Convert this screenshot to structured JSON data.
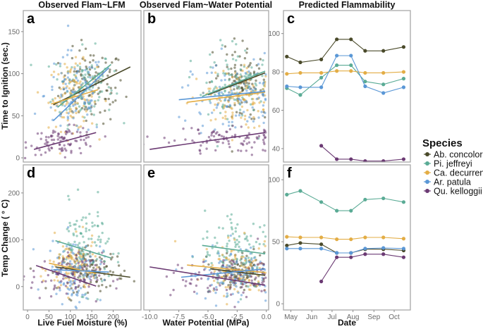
{
  "chart_data": {
    "type": "scatter",
    "species": [
      {
        "name": "Ab. concolor",
        "color": "#4a4a2a"
      },
      {
        "name": "Pi. jeffreyi",
        "color": "#5aab95"
      },
      {
        "name": "Ca. decurrens",
        "color": "#e3ad45"
      },
      {
        "name": "Ar. patula",
        "color": "#5a97d6"
      },
      {
        "name": "Qu. kelloggii",
        "color": "#6b3a73"
      }
    ],
    "legend": {
      "title": "Species",
      "placement": "right"
    },
    "column_titles": [
      "Observed Flam~LFM",
      "Observed Flam~Water Potential",
      "Predicted Flammability"
    ],
    "row_ylabels": [
      "Time to Ignition (sec.)",
      "Temp Change ( ° C)"
    ],
    "xlabels": [
      "Live Fuel Moisture (%)",
      "Water Potential (MPa)",
      "Date"
    ],
    "panels": [
      {
        "id": "a",
        "type": "scatter",
        "x": "Live Fuel Moisture (%)",
        "y": "Time to Ignition (sec.)",
        "xlim": [
          -10,
          265
        ],
        "ylim": [
          -5,
          175
        ],
        "xticks": [
          0,
          50,
          100,
          150,
          200
        ],
        "show_xticks": false,
        "yticks": [
          0,
          50,
          100,
          150
        ],
        "fits": [
          {
            "species": "Ab. concolor",
            "x": [
              60,
              240
            ],
            "y": [
              63,
              108
            ]
          },
          {
            "species": "Pi. jeffreyi",
            "x": [
              70,
              195
            ],
            "y": [
              60,
              111
            ]
          },
          {
            "species": "Ca. decurrens",
            "x": [
              55,
              165
            ],
            "y": [
              64,
              81
            ]
          },
          {
            "species": "Ar. patula",
            "x": [
              60,
              190
            ],
            "y": [
              44,
              107
            ]
          },
          {
            "species": "Qu. kelloggii",
            "x": [
              15,
              160
            ],
            "y": [
              10,
              30
            ]
          }
        ],
        "clouds": [
          {
            "species": "Ab. concolor",
            "n": 110,
            "xmean": 150,
            "xsd": 38,
            "ymean": 85,
            "ysd": 22
          },
          {
            "species": "Pi. jeffreyi",
            "n": 110,
            "xmean": 130,
            "xsd": 35,
            "ymean": 85,
            "ysd": 22
          },
          {
            "species": "Ca. decurrens",
            "n": 110,
            "xmean": 105,
            "xsd": 28,
            "ymean": 73,
            "ysd": 20
          },
          {
            "species": "Ar. patula",
            "n": 100,
            "xmean": 110,
            "xsd": 35,
            "ymean": 75,
            "ysd": 25
          },
          {
            "species": "Qu. kelloggii",
            "n": 90,
            "xmean": 85,
            "xsd": 40,
            "ymean": 20,
            "ysd": 8
          }
        ]
      },
      {
        "id": "b",
        "type": "scatter",
        "x": "Water Potential (MPa)",
        "y": "Time to Ignition (sec.)",
        "xlim": [
          -10.5,
          0.2
        ],
        "ylim": [
          -5,
          175
        ],
        "xticks": [
          -10.0,
          -7.5,
          -5.0,
          -2.5,
          0.0
        ],
        "show_xticks": false,
        "yticks": [
          0,
          50,
          100,
          150
        ],
        "show_yticks": false,
        "fits": [
          {
            "species": "Ab. concolor",
            "x": [
              -5.0,
              -0.1
            ],
            "y": [
              75,
              101
            ]
          },
          {
            "species": "Pi. jeffreyi",
            "x": [
              -5.5,
              -0.1
            ],
            "y": [
              73,
              103
            ]
          },
          {
            "species": "Ca. decurrens",
            "x": [
              -6.8,
              -0.1
            ],
            "y": [
              66,
              78
            ]
          },
          {
            "species": "Ar. patula",
            "x": [
              -7.5,
              -0.1
            ],
            "y": [
              69,
              79
            ]
          },
          {
            "species": "Qu. kelloggii",
            "x": [
              -10.0,
              -0.1
            ],
            "y": [
              10,
              30
            ]
          }
        ],
        "clouds": [
          {
            "species": "Ab. concolor",
            "n": 110,
            "xmean": -2.3,
            "xsd": 1.1,
            "ymean": 88,
            "ysd": 20
          },
          {
            "species": "Pi. jeffreyi",
            "n": 110,
            "xmean": -2.6,
            "xsd": 1.4,
            "ymean": 88,
            "ysd": 22
          },
          {
            "species": "Ca. decurrens",
            "n": 110,
            "xmean": -2.4,
            "xsd": 1.6,
            "ymean": 72,
            "ysd": 18
          },
          {
            "species": "Ar. patula",
            "n": 100,
            "xmean": -2.7,
            "xsd": 1.9,
            "ymean": 75,
            "ysd": 24
          },
          {
            "species": "Qu. kelloggii",
            "n": 90,
            "xmean": -3.0,
            "xsd": 2.4,
            "ymean": 22,
            "ysd": 8
          }
        ]
      },
      {
        "id": "c",
        "type": "line",
        "x": "Date",
        "y": "Time to Ignition (sec.)",
        "ylim": [
          33,
          112
        ],
        "yticks": [
          40,
          60,
          80,
          100
        ],
        "dates": [
          "Apr 25",
          "May 15",
          "Jun 15",
          "Jul 8",
          "Jul 29",
          "Aug 19",
          "Sep 15",
          "Oct 15"
        ],
        "series": [
          {
            "name": "Ab. concolor",
            "values": [
              88,
              85,
              86.5,
              97,
              97,
              91,
              91,
              93
            ]
          },
          {
            "name": "Pi. jeffreyi",
            "values": [
              71.5,
              68,
              77,
              83.5,
              83.5,
              75,
              73.5,
              76.5
            ]
          },
          {
            "name": "Ca. decurrens",
            "values": [
              79,
              79.5,
              79.5,
              80.5,
              80.5,
              79.5,
              79.5,
              80
            ]
          },
          {
            "name": "Ar. patula",
            "values": [
              72.5,
              72,
              72,
              88.5,
              88.5,
              72.5,
              69,
              72
            ]
          },
          {
            "name": "Qu. kelloggii",
            "values": [
              null,
              null,
              41.5,
              34.5,
              34.5,
              33.5,
              33.5,
              34.5
            ]
          }
        ]
      },
      {
        "id": "d",
        "type": "scatter",
        "x": "Live Fuel Moisture (%)",
        "y": "Temp Change ( ° C)",
        "xlim": [
          -10,
          265
        ],
        "ylim": [
          -50,
          260
        ],
        "xticks": [
          0,
          50,
          100,
          150,
          200
        ],
        "yticks": [
          0,
          100,
          200
        ],
        "fits": [
          {
            "species": "Ab. concolor",
            "x": [
              65,
              240
            ],
            "y": [
              42,
              20
            ]
          },
          {
            "species": "Pi. jeffreyi",
            "x": [
              65,
              195
            ],
            "y": [
              98,
              61
            ]
          },
          {
            "species": "Ca. decurrens",
            "x": [
              50,
              160
            ],
            "y": [
              50,
              28
            ]
          },
          {
            "species": "Ar. patula",
            "x": [
              60,
              190
            ],
            "y": [
              36,
              31
            ]
          },
          {
            "species": "Qu. kelloggii",
            "x": [
              20,
              160
            ],
            "y": [
              45,
              1
            ]
          }
        ],
        "clouds": [
          {
            "species": "Ab. concolor",
            "n": 110,
            "xmean": 150,
            "xsd": 38,
            "ymean": 35,
            "ysd": 22
          },
          {
            "species": "Pi. jeffreyi",
            "n": 110,
            "xmean": 130,
            "xsd": 30,
            "ymean": 85,
            "ysd": 45
          },
          {
            "species": "Ca. decurrens",
            "n": 110,
            "xmean": 105,
            "xsd": 28,
            "ymean": 40,
            "ysd": 30
          },
          {
            "species": "Ar. patula",
            "n": 100,
            "xmean": 110,
            "xsd": 32,
            "ymean": 35,
            "ysd": 35
          },
          {
            "species": "Qu. kelloggii",
            "n": 90,
            "xmean": 90,
            "xsd": 42,
            "ymean": 22,
            "ysd": 25
          }
        ]
      },
      {
        "id": "e",
        "type": "scatter",
        "x": "Water Potential (MPa)",
        "y": "Temp Change ( ° C)",
        "xlim": [
          -10.5,
          0.2
        ],
        "ylim": [
          -50,
          260
        ],
        "xticks": [
          -10.0,
          -7.5,
          -5.0,
          -2.5,
          0.0
        ],
        "yticks": [
          0,
          100,
          200
        ],
        "show_yticks": false,
        "fits": [
          {
            "species": "Ab. concolor",
            "x": [
              -4.8,
              -0.1
            ],
            "y": [
              38,
              24
            ]
          },
          {
            "species": "Pi. jeffreyi",
            "x": [
              -5.5,
              -0.1
            ],
            "y": [
              88,
              70
            ]
          },
          {
            "species": "Ca. decurrens",
            "x": [
              -6.8,
              -0.1
            ],
            "y": [
              46,
              30
            ]
          },
          {
            "species": "Ar. patula",
            "x": [
              -7.3,
              -0.1
            ],
            "y": [
              20,
              38
            ]
          },
          {
            "species": "Qu. kelloggii",
            "x": [
              -10.0,
              -0.1
            ],
            "y": [
              42,
              3
            ]
          }
        ],
        "clouds": [
          {
            "species": "Ab. concolor",
            "n": 110,
            "xmean": -2.3,
            "xsd": 1.1,
            "ymean": 32,
            "ysd": 20
          },
          {
            "species": "Pi. jeffreyi",
            "n": 110,
            "xmean": -2.6,
            "xsd": 1.4,
            "ymean": 80,
            "ysd": 42
          },
          {
            "species": "Ca. decurrens",
            "n": 110,
            "xmean": -2.4,
            "xsd": 1.6,
            "ymean": 38,
            "ysd": 28
          },
          {
            "species": "Ar. patula",
            "n": 100,
            "xmean": -2.7,
            "xsd": 1.9,
            "ymean": 30,
            "ysd": 30
          },
          {
            "species": "Qu. kelloggii",
            "n": 90,
            "xmean": -3.0,
            "xsd": 2.6,
            "ymean": 18,
            "ysd": 22
          }
        ]
      },
      {
        "id": "f",
        "type": "line",
        "x": "Date",
        "y": "Temp Change ( ° C)",
        "ylim": [
          -5,
          112
        ],
        "yticks": [
          0,
          50,
          100
        ],
        "xticks": [
          "May",
          "Jun",
          "Jul",
          "Aug",
          "Sep",
          "Oct"
        ],
        "dates": [
          "Apr 25",
          "May 15",
          "Jun 15",
          "Jul 8",
          "Jul 29",
          "Aug 19",
          "Sep 15",
          "Oct 15"
        ],
        "series": [
          {
            "name": "Ab. concolor",
            "values": [
              47,
              49,
              48,
              41,
              41,
              44,
              44,
              43
            ]
          },
          {
            "name": "Pi. jeffreyi",
            "values": [
              88,
              91,
              82,
              75,
              75,
              84,
              85,
              82
            ]
          },
          {
            "name": "Ca. decurrens",
            "values": [
              54,
              53.5,
              53.5,
              52,
              52,
              53.5,
              53.5,
              52.5
            ]
          },
          {
            "name": "Ar. patula",
            "values": [
              44.5,
              44.5,
              44.5,
              41,
              41,
              44.5,
              45,
              44.5
            ]
          },
          {
            "name": "Qu. kelloggii",
            "values": [
              null,
              null,
              18,
              37.5,
              37.5,
              40,
              40,
              37.5
            ]
          }
        ]
      }
    ]
  }
}
